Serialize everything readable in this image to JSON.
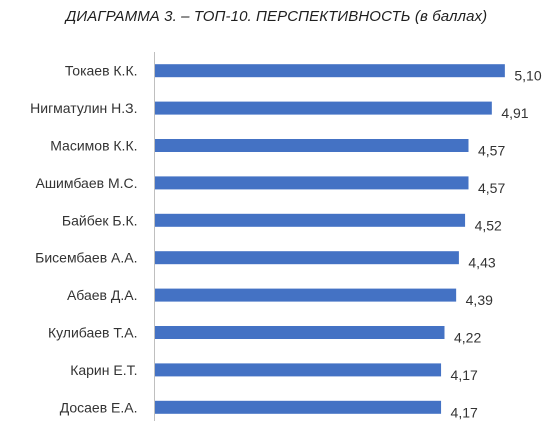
{
  "chart_data": {
    "type": "bar",
    "orientation": "horizontal",
    "title": "ДИАГРАММА 3. – ТОП-10. ПЕРСПЕКТИВНОСТЬ (в баллах)",
    "categories": [
      "Токаев К.К.",
      "Нигматулин Н.З.",
      "Масимов К.К.",
      "Ашимбаев М.С.",
      "Байбек Б.К.",
      "Бисембаев А.А.",
      "Абаев Д.А.",
      "Кулибаев Т.А.",
      "Карин Е.Т.",
      "Досаев Е.А."
    ],
    "values": [
      5.1,
      4.91,
      4.57,
      4.57,
      4.52,
      4.43,
      4.39,
      4.22,
      4.17,
      4.17
    ],
    "value_labels": [
      "5,10",
      "4,91",
      "4,57",
      "4,57",
      "4,52",
      "4,43",
      "4,39",
      "4,22",
      "4,17",
      "4,17"
    ],
    "bar_color": "#4472C4",
    "axis_color": "#bfbfbf",
    "grid": false,
    "legend": "none"
  }
}
